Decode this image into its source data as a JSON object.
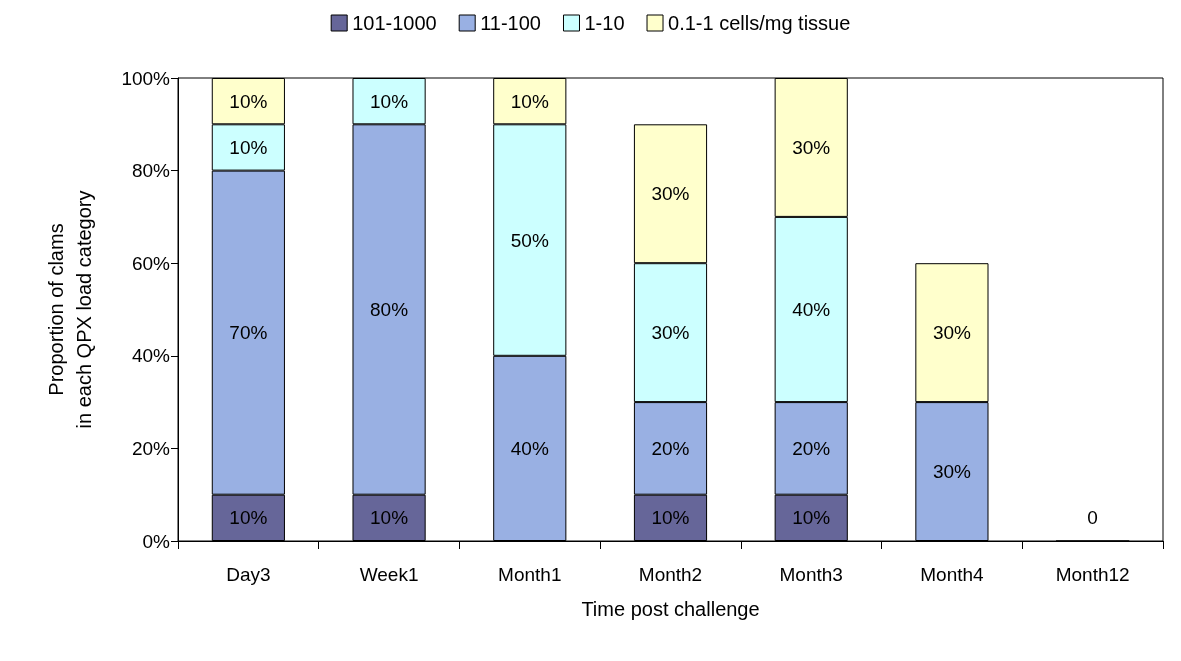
{
  "chart_data": {
    "type": "bar",
    "stacked": true,
    "xlabel": "Time post challenge",
    "ylabel": "Proportion of clams\nin each QPX load category",
    "categories": [
      "Day3",
      "Week1",
      "Month1",
      "Month2",
      "Month3",
      "Month4",
      "Month12"
    ],
    "series": [
      {
        "name": "101-1000",
        "color": "#666699",
        "values": [
          10,
          10,
          null,
          10,
          10,
          null,
          0
        ],
        "value_labels": [
          "10%",
          "10%",
          null,
          "10%",
          "10%",
          null,
          "0"
        ]
      },
      {
        "name": "11-100",
        "color": "#99b0e3",
        "values": [
          70,
          80,
          40,
          20,
          20,
          30,
          null
        ],
        "value_labels": [
          "70%",
          "80%",
          "40%",
          "20%",
          "20%",
          "30%",
          null
        ]
      },
      {
        "name": "1-10",
        "color": "#ccffff",
        "values": [
          10,
          10,
          50,
          30,
          40,
          null,
          null
        ],
        "value_labels": [
          "10%",
          "10%",
          "50%",
          "30%",
          "40%",
          null,
          null
        ]
      },
      {
        "name": "0.1-1 cells/mg tissue",
        "color": "#ffffcc",
        "values": [
          10,
          null,
          10,
          30,
          30,
          30,
          null
        ],
        "value_labels": [
          "10%",
          null,
          "10%",
          "30%",
          "30%",
          "30%",
          null
        ]
      }
    ],
    "ylim": [
      0,
      100
    ],
    "yticks": [
      {
        "value": 0,
        "label": "0%"
      },
      {
        "value": 20,
        "label": "20%"
      },
      {
        "value": 40,
        "label": "40%"
      },
      {
        "value": 60,
        "label": "60%"
      },
      {
        "value": 80,
        "label": "80%"
      },
      {
        "value": 100,
        "label": "100%"
      }
    ],
    "grid": false,
    "legend": "top"
  }
}
